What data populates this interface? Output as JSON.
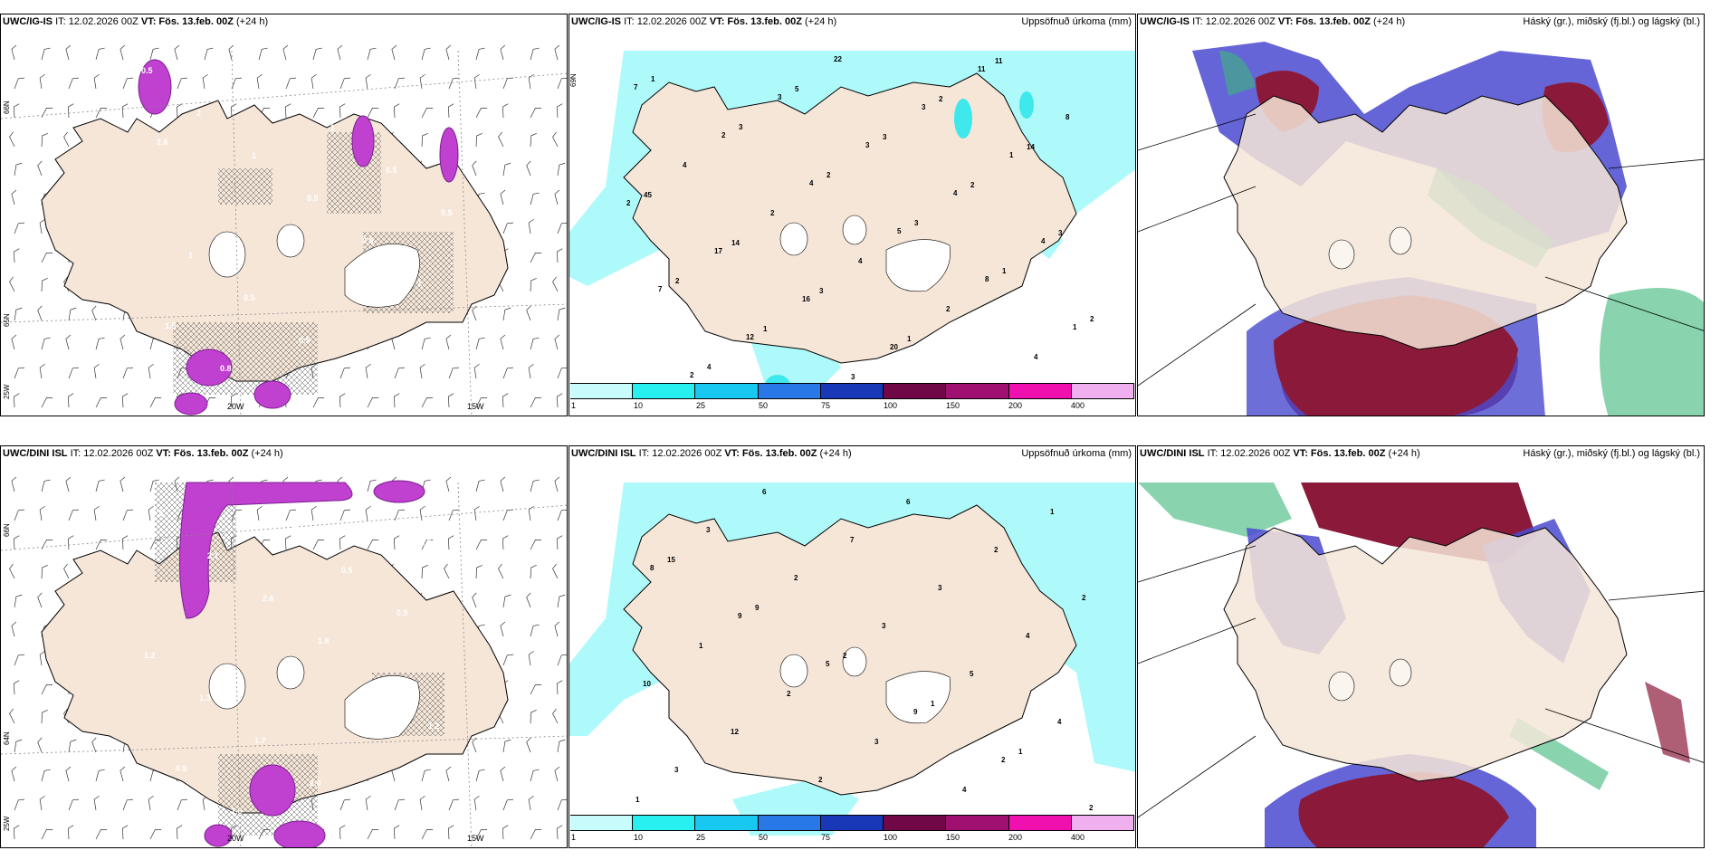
{
  "colors": {
    "land": "#f5e6d8",
    "precip_light": "#aefafa",
    "precip_mid": "#3ee8ec",
    "snow_magenta": "#c040d0",
    "cloud_high": "#8b1a3a",
    "cloud_mid": "#4a4ad0",
    "cloud_low": "#3ab87a"
  },
  "panels": {
    "r0c0": {
      "model": "UWC/IG-IS",
      "it": "IT: 12.02.2026 00Z",
      "vt": "VT: Fös. 13.feb. 00Z",
      "lead": "(+24 h)",
      "right": ""
    },
    "r0c1": {
      "model": "UWC/IG-IS",
      "it": "IT: 12.02.2026 00Z",
      "vt": "VT: Fös. 13.feb. 00Z",
      "lead": "(+24 h)",
      "right": "Uppsöfnuð úrkoma (mm)"
    },
    "r0c2": {
      "model": "UWC/IG-IS",
      "it": "IT: 12.02.2026 00Z",
      "vt": "VT: Fös. 13.feb. 00Z",
      "lead": "(+24 h)",
      "right": "Háský (gr.), miðský (fj.bl.) og lágský (bl.)"
    },
    "r1c0": {
      "model": "UWC/DINI ISL",
      "it": "IT: 12.02.2026 00Z",
      "vt": "VT: Fös. 13.feb. 00Z",
      "lead": "(+24 h)",
      "right": ""
    },
    "r1c1": {
      "model": "UWC/DINI ISL",
      "it": "IT: 12.02.2026 00Z",
      "vt": "VT: Fös. 13.feb. 00Z",
      "lead": "(+24 h)",
      "right": "Uppsöfnuð úrkoma (mm)"
    },
    "r1c2": {
      "model": "UWC/DINI ISL",
      "it": "IT: 12.02.2026 00Z",
      "vt": "VT: Fös. 13.feb. 00Z",
      "lead": "(+24 h)",
      "right": "Háský (gr.), miðský (fj.bl.) og lágský (bl.)"
    }
  },
  "colorbar": {
    "labels": [
      "1",
      "10",
      "25",
      "50",
      "75",
      "100",
      "150",
      "200",
      "400"
    ],
    "colors": [
      "#c8fcfc",
      "#28f0f0",
      "#18c8f0",
      "#2878e8",
      "#1838b8",
      "#700848",
      "#a01070",
      "#f010b0",
      "#f0b0f0"
    ]
  },
  "axis_labels": {
    "lon_20w": "20W",
    "lon_15w": "15W",
    "lat_66n": "66N",
    "lat_65n": "65N",
    "lat_64n": "64N",
    "lat_25w": "25W",
    "lat_69n": "69N"
  },
  "precip_numbers_top": [
    "7",
    "2",
    "4",
    "5",
    "8",
    "1",
    "2",
    "3",
    "3",
    "4",
    "4",
    "7",
    "12",
    "22",
    "3",
    "1",
    "2",
    "17",
    "16",
    "20",
    "11",
    "8",
    "4",
    "2",
    "4",
    "2",
    "4",
    "1",
    "3",
    "2",
    "3",
    "1",
    "2",
    "4",
    "5",
    "3",
    "2",
    "3",
    "2",
    "1",
    "3",
    "2",
    "14",
    "45",
    "14",
    "3",
    "1",
    "11"
  ],
  "precip_numbers_bottom": [
    "8",
    "9",
    "5",
    "9",
    "2",
    "2",
    "3",
    "2",
    "3",
    "5",
    "4",
    "3",
    "6",
    "7",
    "3",
    "4",
    "10",
    "12",
    "2",
    "6",
    "2",
    "2",
    "1",
    "2",
    "3",
    "4",
    "1",
    "15",
    "9",
    "2",
    "1",
    "1",
    "1"
  ],
  "snow_labels_top": [
    "0.5",
    "2",
    "1",
    "0.5",
    "0.5",
    "1",
    "1.5",
    "0.8",
    "1.1",
    "1",
    "0.5",
    "0.5",
    "1",
    "0.5",
    "0.5",
    "0.7",
    "2.0",
    "2.6"
  ],
  "snow_labels_bottom": [
    "0.5",
    "2.1",
    "2.6",
    "1.8",
    "1.3",
    "1.2",
    "0.5",
    "1.0",
    "1.5",
    "0.5",
    "0.5",
    "1.2",
    "1.3",
    "1.7",
    "2.0",
    "1.8",
    "1.5"
  ]
}
